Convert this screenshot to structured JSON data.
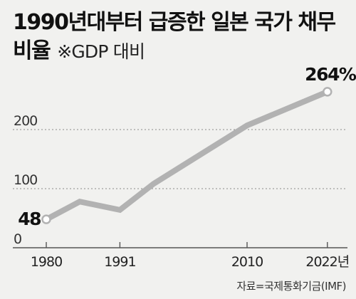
{
  "title": {
    "line1": "1990년대부터 급증한 일본 국가 채무",
    "line2": "비율",
    "note": "※GDP 대비"
  },
  "source": "자료=국제통화기금(IMF)",
  "chart_data": {
    "type": "line",
    "title": "1990년대부터 급증한 일본 국가 채무 비율",
    "subtitle": "※GDP 대비",
    "x_tick_labels": [
      "1980",
      "1991",
      "2010",
      "2022년"
    ],
    "x_tick_values": [
      1980,
      1991,
      2010,
      2022
    ],
    "y_tick_labels": [
      "0",
      "100",
      "200"
    ],
    "y_tick_values": [
      0,
      100,
      200
    ],
    "xlim": [
      1975,
      2025
    ],
    "ylim": [
      0,
      280
    ],
    "grid": "horizontal-dashed",
    "series": [
      {
        "x": [
          1980,
          1985,
          1991,
          1996,
          2010,
          2022
        ],
        "y": [
          48,
          78,
          64,
          108,
          207,
          264
        ],
        "color": "#b2b2b2"
      }
    ],
    "annotations": [
      {
        "x": 1980,
        "y": 48,
        "text": "48"
      },
      {
        "x": 2022,
        "y": 264,
        "text": "264%"
      }
    ],
    "colors": {
      "line": "#b2b2b2",
      "grid": "#8a8a8a",
      "axis": "#555555",
      "background": "#f1f1ef"
    }
  }
}
